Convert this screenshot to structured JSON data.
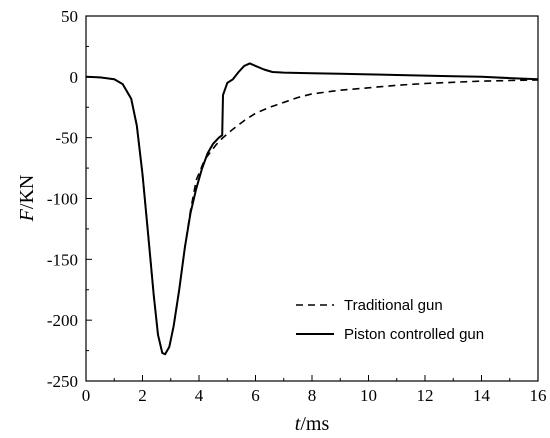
{
  "chart_data": {
    "type": "line",
    "xlabel": {
      "italic": "t",
      "rest": "/ms"
    },
    "ylabel": {
      "italic": "F",
      "rest": "/KN"
    },
    "xlim": [
      0,
      16
    ],
    "ylim": [
      -250,
      50
    ],
    "x_ticks": [
      0,
      2,
      4,
      6,
      8,
      10,
      12,
      14,
      16
    ],
    "y_ticks": [
      50,
      0,
      -50,
      -100,
      -150,
      -200,
      -250
    ],
    "grid": false,
    "legend_position": "bottom-right",
    "series": [
      {
        "name": "Traditional gun",
        "style": "dashed",
        "color": "#000000",
        "points": [
          [
            0,
            0
          ],
          [
            0.5,
            -0.5
          ],
          [
            1.0,
            -2
          ],
          [
            1.3,
            -6
          ],
          [
            1.6,
            -18
          ],
          [
            1.8,
            -40
          ],
          [
            2.0,
            -80
          ],
          [
            2.2,
            -130
          ],
          [
            2.4,
            -180
          ],
          [
            2.55,
            -212
          ],
          [
            2.7,
            -227
          ],
          [
            2.8,
            -228
          ],
          [
            2.95,
            -222
          ],
          [
            3.1,
            -205
          ],
          [
            3.3,
            -175
          ],
          [
            3.5,
            -140
          ],
          [
            3.7,
            -110
          ],
          [
            3.9,
            -85
          ],
          [
            4.2,
            -68
          ],
          [
            4.6,
            -56
          ],
          [
            4.8,
            -51
          ],
          [
            5.2,
            -43
          ],
          [
            5.6,
            -36
          ],
          [
            6.0,
            -30
          ],
          [
            6.5,
            -25
          ],
          [
            7.0,
            -21
          ],
          [
            7.5,
            -17
          ],
          [
            8.0,
            -14
          ],
          [
            9.0,
            -11
          ],
          [
            10.0,
            -9
          ],
          [
            11.0,
            -7
          ],
          [
            12.0,
            -5.5
          ],
          [
            13.0,
            -4.5
          ],
          [
            14.0,
            -3.5
          ],
          [
            15.0,
            -3
          ],
          [
            16.0,
            -2.5
          ]
        ]
      },
      {
        "name": "Piston controlled gun",
        "style": "solid",
        "color": "#000000",
        "points": [
          [
            0,
            0
          ],
          [
            0.5,
            -0.5
          ],
          [
            1.0,
            -2
          ],
          [
            1.3,
            -6
          ],
          [
            1.6,
            -18
          ],
          [
            1.8,
            -40
          ],
          [
            2.0,
            -80
          ],
          [
            2.2,
            -130
          ],
          [
            2.4,
            -180
          ],
          [
            2.55,
            -212
          ],
          [
            2.7,
            -227
          ],
          [
            2.8,
            -228
          ],
          [
            2.95,
            -222
          ],
          [
            3.1,
            -205
          ],
          [
            3.3,
            -175
          ],
          [
            3.5,
            -140
          ],
          [
            3.7,
            -112
          ],
          [
            3.9,
            -92
          ],
          [
            4.1,
            -76
          ],
          [
            4.3,
            -63
          ],
          [
            4.5,
            -55
          ],
          [
            4.7,
            -50
          ],
          [
            4.82,
            -48
          ],
          [
            4.85,
            -15
          ],
          [
            5.0,
            -5
          ],
          [
            5.2,
            -2
          ],
          [
            5.4,
            4
          ],
          [
            5.6,
            9
          ],
          [
            5.8,
            11
          ],
          [
            6.0,
            9
          ],
          [
            6.3,
            6
          ],
          [
            6.6,
            4
          ],
          [
            7.0,
            3.5
          ],
          [
            8.0,
            3
          ],
          [
            9.0,
            2.5
          ],
          [
            10.0,
            2
          ],
          [
            11.0,
            1.5
          ],
          [
            12.0,
            1
          ],
          [
            13.0,
            0.5
          ],
          [
            14.0,
            0
          ],
          [
            15.0,
            -1
          ],
          [
            16.0,
            -2
          ]
        ]
      }
    ]
  }
}
